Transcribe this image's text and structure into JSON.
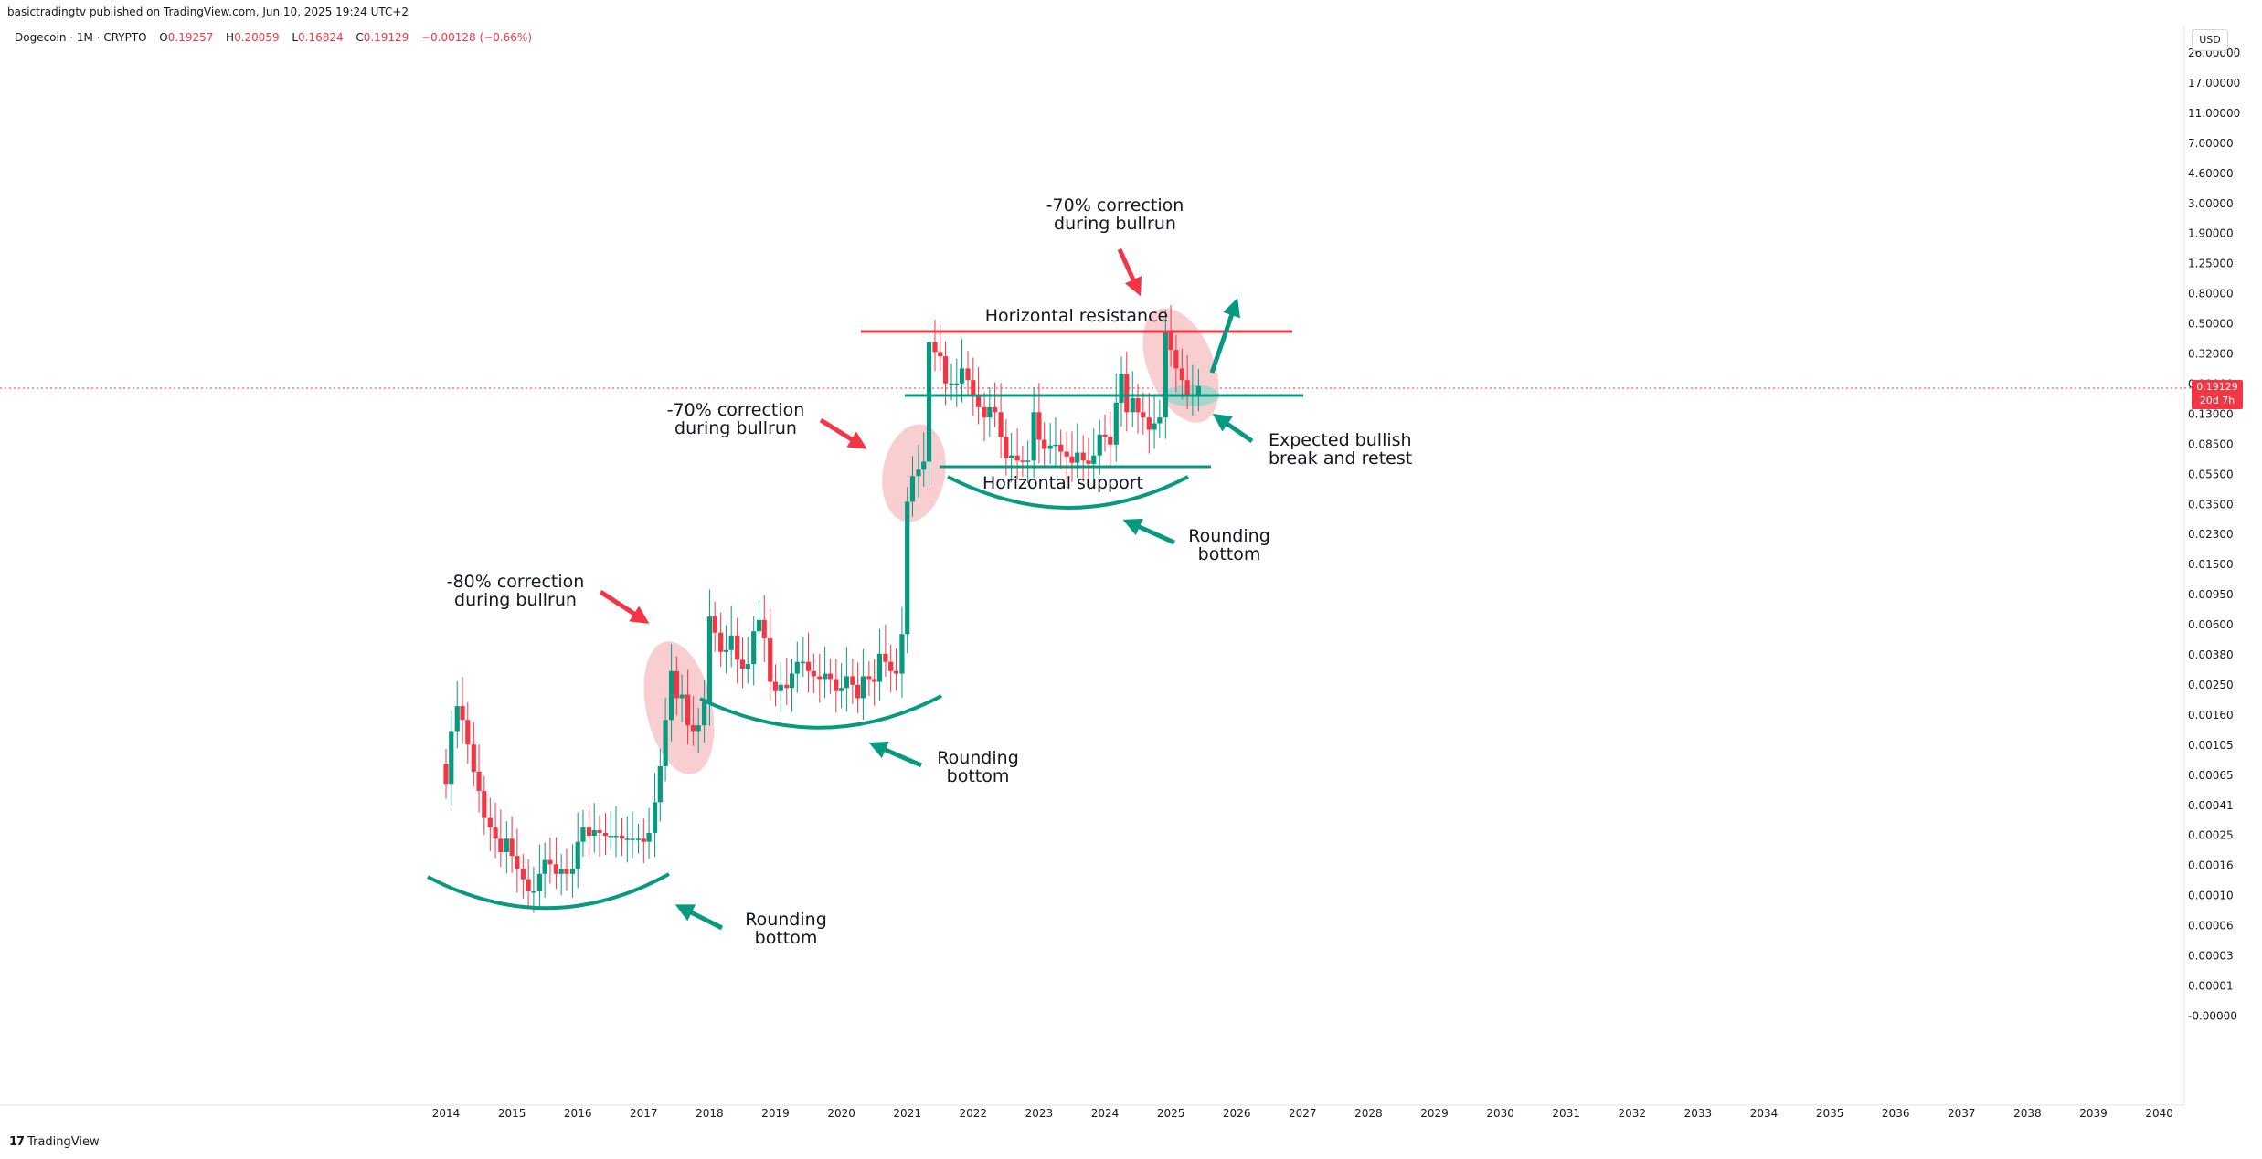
{
  "header": {
    "published": "basictradingtv published on TradingView.com, Jun 10, 2025 19:24 UTC+2",
    "symbol": "Dogecoin · 1M · CRYPTO",
    "o_label": "O",
    "o": "0.19257",
    "h_label": "H",
    "h": "0.20059",
    "l_label": "L",
    "l": "0.16824",
    "c_label": "C",
    "c": "0.19129",
    "change": "−0.00128 (−0.66%)"
  },
  "currency": "USD",
  "last_price": {
    "value": "0.19129",
    "countdown": "20d 7h"
  },
  "footer": {
    "brand": "TradingView",
    "brand_mark": "17"
  },
  "colors": {
    "up": "#089981",
    "down": "#f23645",
    "resistance": "#f23645",
    "annotation_green": "#089981",
    "annotation_red": "#f23645",
    "highlight_red": "#f8c5c9",
    "highlight_green": "#9fd6c8"
  },
  "annotations": {
    "correction_1": [
      "-80% correction",
      "during bullrun"
    ],
    "correction_2": [
      "-70% correction",
      "during bullrun"
    ],
    "correction_3": [
      "-70% correction",
      "during bullrun"
    ],
    "rounding_1": [
      "Rounding",
      "bottom"
    ],
    "rounding_2": [
      "Rounding",
      "bottom"
    ],
    "rounding_3": [
      "Rounding",
      "bottom"
    ],
    "resistance": "Horizontal resistance",
    "support": "Horizontal support",
    "expected": [
      "Expected bullish",
      "break and retest"
    ]
  },
  "chart_data": {
    "type": "candlestick",
    "scale": "log",
    "price_axis_labels": [
      "26.00000",
      "17.00000",
      "11.00000",
      "7.00000",
      "4.60000",
      "3.00000",
      "1.90000",
      "1.25000",
      "0.80000",
      "0.50000",
      "0.32000",
      "0.21000",
      "0.13000",
      "0.08500",
      "0.05500",
      "0.03500",
      "0.02300",
      "0.01500",
      "0.00950",
      "0.00600",
      "0.00380",
      "0.00250",
      "0.00160",
      "0.00105",
      "0.00065",
      "0.00041",
      "0.00025",
      "0.00016",
      "0.00010",
      "0.00006",
      "0.00003",
      "0.00001",
      "-0.00000"
    ],
    "time_axis_labels": [
      "2014",
      "2015",
      "2016",
      "2017",
      "2018",
      "2019",
      "2020",
      "2021",
      "2022",
      "2023",
      "2024",
      "2025",
      "2026",
      "2027",
      "2028",
      "2029",
      "2030",
      "2031",
      "2032",
      "2033",
      "2034",
      "2035",
      "2036",
      "2037",
      "2038",
      "2039",
      "2040"
    ],
    "series": [
      {
        "name": "Dogecoin · 1M · CRYPTO",
        "close_path": [
          [
            2014.0,
            0.0005
          ],
          [
            2014.08,
            0.0011
          ],
          [
            2014.17,
            0.0016
          ],
          [
            2014.25,
            0.0013
          ],
          [
            2014.33,
            0.0009
          ],
          [
            2014.42,
            0.0006
          ],
          [
            2014.5,
            0.00045
          ],
          [
            2014.58,
            0.0003
          ],
          [
            2014.67,
            0.00026
          ],
          [
            2014.75,
            0.00022
          ],
          [
            2014.83,
            0.00018
          ],
          [
            2014.92,
            0.00022
          ],
          [
            2015.0,
            0.00017
          ],
          [
            2015.08,
            0.00014
          ],
          [
            2015.17,
            0.00012
          ],
          [
            2015.25,
            0.0001
          ],
          [
            2015.33,
            0.0001
          ],
          [
            2015.42,
            0.00013
          ],
          [
            2015.5,
            0.00016
          ],
          [
            2015.58,
            0.00015
          ],
          [
            2015.67,
            0.00013
          ],
          [
            2015.75,
            0.00014
          ],
          [
            2015.83,
            0.00013
          ],
          [
            2015.92,
            0.00014
          ],
          [
            2016.0,
            0.00021
          ],
          [
            2016.08,
            0.00026
          ],
          [
            2016.17,
            0.00023
          ],
          [
            2016.25,
            0.00025
          ],
          [
            2016.33,
            0.00024
          ],
          [
            2016.42,
            0.00023
          ],
          [
            2016.5,
            0.00023
          ],
          [
            2016.58,
            0.00023
          ],
          [
            2016.67,
            0.00022
          ],
          [
            2016.75,
            0.00022
          ],
          [
            2016.83,
            0.00022
          ],
          [
            2016.92,
            0.00022
          ],
          [
            2017.0,
            0.00021
          ],
          [
            2017.08,
            0.00024
          ],
          [
            2017.17,
            0.00038
          ],
          [
            2017.25,
            0.00065
          ],
          [
            2017.33,
            0.0013
          ],
          [
            2017.42,
            0.0027
          ],
          [
            2017.5,
            0.0018
          ],
          [
            2017.58,
            0.0019
          ],
          [
            2017.67,
            0.0012
          ],
          [
            2017.75,
            0.0011
          ],
          [
            2017.83,
            0.0012
          ],
          [
            2017.92,
            0.0017
          ],
          [
            2018.0,
            0.0061
          ],
          [
            2018.08,
            0.0048
          ],
          [
            2018.17,
            0.0036
          ],
          [
            2018.25,
            0.0037
          ],
          [
            2018.33,
            0.0046
          ],
          [
            2018.42,
            0.0032
          ],
          [
            2018.5,
            0.0028
          ],
          [
            2018.58,
            0.003
          ],
          [
            2018.67,
            0.0049
          ],
          [
            2018.75,
            0.0058
          ],
          [
            2018.83,
            0.0044
          ],
          [
            2018.92,
            0.0023
          ],
          [
            2019.0,
            0.002
          ],
          [
            2019.08,
            0.0022
          ],
          [
            2019.17,
            0.0021
          ],
          [
            2019.25,
            0.0026
          ],
          [
            2019.33,
            0.0031
          ],
          [
            2019.42,
            0.0031
          ],
          [
            2019.5,
            0.0027
          ],
          [
            2019.58,
            0.0025
          ],
          [
            2019.67,
            0.0024
          ],
          [
            2019.75,
            0.0026
          ],
          [
            2019.83,
            0.0024
          ],
          [
            2019.92,
            0.002
          ],
          [
            2020.0,
            0.0021
          ],
          [
            2020.08,
            0.0025
          ],
          [
            2020.17,
            0.0022
          ],
          [
            2020.25,
            0.0018
          ],
          [
            2020.33,
            0.0025
          ],
          [
            2020.42,
            0.0024
          ],
          [
            2020.5,
            0.0023
          ],
          [
            2020.58,
            0.0035
          ],
          [
            2020.67,
            0.0031
          ],
          [
            2020.75,
            0.0027
          ],
          [
            2020.83,
            0.0026
          ],
          [
            2020.92,
            0.0047
          ],
          [
            2021.0,
            0.034
          ],
          [
            2021.08,
            0.05
          ],
          [
            2021.17,
            0.055
          ],
          [
            2021.25,
            0.062
          ],
          [
            2021.33,
            0.37
          ],
          [
            2021.42,
            0.32
          ],
          [
            2021.5,
            0.3
          ],
          [
            2021.58,
            0.2
          ],
          [
            2021.67,
            0.2
          ],
          [
            2021.75,
            0.2
          ],
          [
            2021.83,
            0.25
          ],
          [
            2021.92,
            0.21
          ],
          [
            2022.0,
            0.17
          ],
          [
            2022.08,
            0.14
          ],
          [
            2022.17,
            0.12
          ],
          [
            2022.25,
            0.14
          ],
          [
            2022.33,
            0.13
          ],
          [
            2022.42,
            0.09
          ],
          [
            2022.5,
            0.065
          ],
          [
            2022.58,
            0.068
          ],
          [
            2022.67,
            0.063
          ],
          [
            2022.75,
            0.062
          ],
          [
            2022.83,
            0.063
          ],
          [
            2022.92,
            0.13
          ],
          [
            2023.0,
            0.086
          ],
          [
            2023.08,
            0.075
          ],
          [
            2023.17,
            0.079
          ],
          [
            2023.25,
            0.08
          ],
          [
            2023.33,
            0.072
          ],
          [
            2023.42,
            0.067
          ],
          [
            2023.5,
            0.061
          ],
          [
            2023.58,
            0.071
          ],
          [
            2023.67,
            0.063
          ],
          [
            2023.75,
            0.06
          ],
          [
            2023.83,
            0.068
          ],
          [
            2023.92,
            0.093
          ],
          [
            2024.0,
            0.09
          ],
          [
            2024.08,
            0.08
          ],
          [
            2024.17,
            0.15
          ],
          [
            2024.25,
            0.23
          ],
          [
            2024.33,
            0.13
          ],
          [
            2024.42,
            0.16
          ],
          [
            2024.5,
            0.13
          ],
          [
            2024.58,
            0.12
          ],
          [
            2024.67,
            0.1
          ],
          [
            2024.75,
            0.11
          ],
          [
            2024.83,
            0.12
          ],
          [
            2024.92,
            0.43
          ],
          [
            2025.0,
            0.33
          ],
          [
            2025.08,
            0.25
          ],
          [
            2025.17,
            0.21
          ],
          [
            2025.25,
            0.17
          ],
          [
            2025.33,
            0.17
          ],
          [
            2025.42,
            0.19129
          ]
        ]
      }
    ],
    "key_levels": {
      "horizontal_resistance": 0.42,
      "horizontal_support": 0.063,
      "breakout_level": 0.16,
      "last_close": 0.19129
    }
  }
}
